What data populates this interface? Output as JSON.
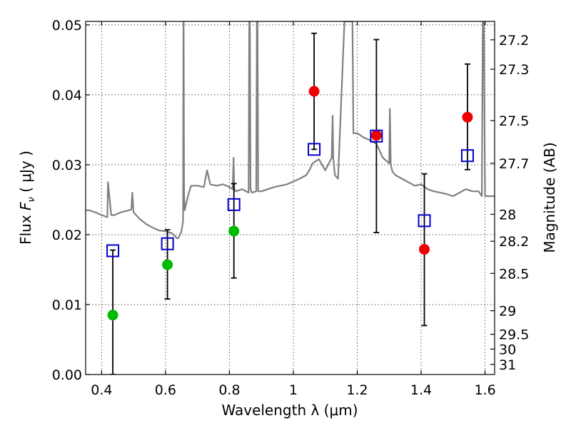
{
  "chart_data": {
    "type": "scatter",
    "xlabel": "Wavelength  λ (μm)",
    "ylabel": "Flux  F_ν  ( μJy )",
    "y2label": "Magnitude (AB)",
    "xlim": [
      0.35,
      1.63
    ],
    "ylim": [
      0.0,
      0.0505
    ],
    "x_ticks": [
      "0.4",
      "0.6",
      "0.8",
      "1",
      "1.2",
      "1.4",
      "1.6"
    ],
    "x_tick_values": [
      0.4,
      0.6,
      0.8,
      1.0,
      1.2,
      1.4,
      1.6
    ],
    "y_ticks": [
      "0.00",
      "0.01",
      "0.02",
      "0.03",
      "0.04",
      "0.05"
    ],
    "y_tick_values": [
      0.0,
      0.01,
      0.02,
      0.03,
      0.04,
      0.05
    ],
    "y2_ticks": [
      "27.2",
      "27.3",
      "27.5",
      "27.7",
      "28",
      "28.2",
      "28.5",
      "29",
      "29.5",
      "30",
      "31"
    ],
    "y2_tick_values": [
      27.2,
      27.3,
      27.5,
      27.7,
      28.0,
      28.2,
      28.5,
      29.0,
      29.5,
      30.0,
      31.0
    ],
    "grid": true,
    "series": [
      {
        "marker": "circle",
        "color": "#00bb00",
        "x": [
          0.435,
          0.606,
          0.814
        ],
        "y": [
          0.0085,
          0.0157,
          0.0205
        ],
        "yerr_low": [
          0.0085,
          0.0049,
          0.0067
        ],
        "yerr_high": [
          0.0093,
          0.005,
          0.0068
        ]
      },
      {
        "marker": "circle",
        "color": "#ee0000",
        "x": [
          1.065,
          1.26,
          1.41,
          1.545
        ],
        "y": [
          0.0405,
          0.0342,
          0.0179,
          0.0368
        ],
        "yerr_low": [
          0.0083,
          0.0139,
          0.0109,
          0.0075
        ],
        "yerr_high": [
          0.0083,
          0.0137,
          0.0108,
          0.0076
        ]
      },
      {
        "marker": "square",
        "color": "#0000cc",
        "x": [
          0.435,
          0.606,
          0.814,
          1.065,
          1.26,
          1.41,
          1.545
        ],
        "y": [
          0.0177,
          0.0187,
          0.0243,
          0.0322,
          0.0341,
          0.022,
          0.0313
        ]
      },
      {
        "marker": "line",
        "color": "#808080",
        "x": [
          0.35,
          0.36,
          0.38,
          0.4,
          0.418,
          0.42,
          0.43,
          0.44,
          0.46,
          0.48,
          0.493,
          0.496,
          0.5,
          0.52,
          0.54,
          0.56,
          0.58,
          0.6,
          0.62,
          0.636,
          0.64,
          0.65,
          0.655,
          0.656,
          0.6563,
          0.6566,
          0.658,
          0.66,
          0.67,
          0.68,
          0.7,
          0.72,
          0.73,
          0.74,
          0.76,
          0.78,
          0.8,
          0.81,
          0.813,
          0.815,
          0.82,
          0.84,
          0.86,
          0.862,
          0.864,
          0.866,
          0.87,
          0.884,
          0.886,
          0.888,
          0.89,
          0.9,
          0.92,
          0.94,
          0.96,
          0.98,
          1.0,
          1.02,
          1.04,
          1.05,
          1.06,
          1.08,
          1.1,
          1.12,
          1.123,
          1.125,
          1.13,
          1.14,
          1.16,
          1.17,
          1.18,
          1.185,
          1.188,
          1.2,
          1.22,
          1.24,
          1.26,
          1.28,
          1.3,
          1.302,
          1.305,
          1.31,
          1.32,
          1.34,
          1.36,
          1.38,
          1.4,
          1.42,
          1.44,
          1.46,
          1.48,
          1.5,
          1.52,
          1.54,
          1.56,
          1.58,
          1.59,
          1.593,
          1.596,
          1.6,
          1.62,
          1.63
        ],
        "y": [
          0.0235,
          0.0235,
          0.0232,
          0.0228,
          0.0225,
          0.0275,
          0.0228,
          0.0228,
          0.0232,
          0.0234,
          0.0236,
          0.026,
          0.0232,
          0.0222,
          0.0215,
          0.021,
          0.0206,
          0.0205,
          0.0202,
          0.0195,
          0.0195,
          0.0205,
          0.022,
          0.0505,
          0.0505,
          0.0505,
          0.026,
          0.0235,
          0.0255,
          0.027,
          0.027,
          0.0268,
          0.0292,
          0.0272,
          0.027,
          0.0272,
          0.0268,
          0.0265,
          0.031,
          0.0265,
          0.0262,
          0.0265,
          0.026,
          0.0505,
          0.0505,
          0.0265,
          0.026,
          0.0262,
          0.0505,
          0.0505,
          0.0262,
          0.0262,
          0.0265,
          0.0268,
          0.027,
          0.0272,
          0.0276,
          0.028,
          0.0285,
          0.0292,
          0.0302,
          0.0308,
          0.0292,
          0.031,
          0.037,
          0.031,
          0.0285,
          0.028,
          0.0505,
          0.0505,
          0.0505,
          0.0505,
          0.0345,
          0.0345,
          0.0339,
          0.0335,
          0.033,
          0.031,
          0.0302,
          0.038,
          0.03,
          0.029,
          0.0285,
          0.028,
          0.0275,
          0.027,
          0.0272,
          0.0265,
          0.0262,
          0.026,
          0.0258,
          0.0255,
          0.026,
          0.0265,
          0.0262,
          0.0262,
          0.0255,
          0.0505,
          0.0505,
          0.0255,
          0.0255,
          0.0255
        ]
      }
    ]
  }
}
